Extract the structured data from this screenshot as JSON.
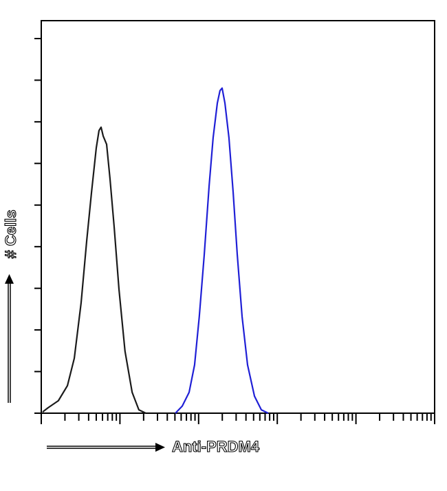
{
  "chart_data": {
    "type": "line",
    "x_label": "Anti-PRDM4",
    "y_label": "# Cells",
    "xscale": "log",
    "xlim": [
      1,
      100000
    ],
    "xticks": [
      1,
      2,
      3,
      4,
      5,
      6,
      7,
      8,
      9,
      10,
      20,
      30,
      40,
      50,
      60,
      70,
      80,
      90,
      100,
      200,
      300,
      400,
      500,
      600,
      700,
      800,
      900,
      1000,
      2000,
      3000,
      4000,
      5000,
      6000,
      7000,
      8000,
      9000,
      10000,
      20000,
      30000,
      40000,
      50000,
      60000,
      70000,
      80000,
      90000,
      100000
    ],
    "ylim": [
      0,
      9.43
    ],
    "yticks": [
      0,
      1,
      2,
      3,
      4,
      5,
      6,
      7,
      8,
      9
    ],
    "series": [
      {
        "color": "#1a1a1a",
        "x": [
          1.04,
          1.22,
          1.65,
          2.15,
          2.63,
          3.21,
          3.78,
          4.35,
          5.0,
          5.42,
          5.76,
          6.12,
          6.77,
          7.48,
          8.45,
          9.72,
          11.6,
          14.3,
          17.4,
          21.3
        ],
        "values": [
          0.03,
          0.13,
          0.3,
          0.66,
          1.32,
          2.65,
          4.14,
          5.3,
          6.37,
          6.79,
          6.87,
          6.66,
          6.46,
          5.63,
          4.47,
          2.98,
          1.49,
          0.5,
          0.08,
          0
        ]
      },
      {
        "color": "#1f1fd6",
        "x": [
          50.7,
          61.9,
          75.7,
          88.9,
          102,
          118,
          136,
          153,
          173,
          187,
          199,
          216,
          243,
          275,
          310,
          357,
          419,
          513,
          627,
          767
        ],
        "values": [
          0,
          0.17,
          0.5,
          1.16,
          2.32,
          3.81,
          5.46,
          6.62,
          7.45,
          7.75,
          7.81,
          7.45,
          6.62,
          5.3,
          3.81,
          2.32,
          1.16,
          0.41,
          0.08,
          0
        ]
      }
    ]
  }
}
